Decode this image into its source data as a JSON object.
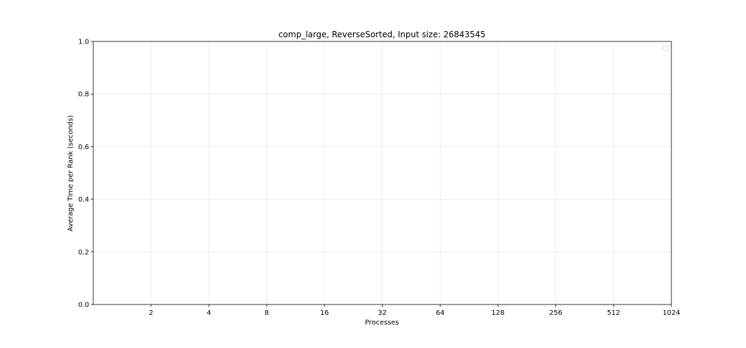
{
  "chart_data": {
    "type": "line",
    "title": "comp_large, ReverseSorted, Input size: 26843545",
    "xlabel": "Processes",
    "ylabel": "Average Time per Rank (seconds)",
    "x_scale": "log2",
    "x_ticks": [
      "2",
      "4",
      "8",
      "16",
      "32",
      "64",
      "128",
      "256",
      "512",
      "1024"
    ],
    "x_tick_values": [
      2,
      4,
      8,
      16,
      32,
      64,
      128,
      256,
      512,
      1024
    ],
    "xlim": [
      1,
      1024
    ],
    "ylim": [
      0,
      1
    ],
    "y_ticks": [
      "0.0",
      "0.2",
      "0.4",
      "0.6",
      "0.8",
      "1.0"
    ],
    "y_tick_values": [
      0,
      0.2,
      0.4,
      0.6,
      0.8,
      1.0
    ],
    "grid": true,
    "legend_position": "top-right",
    "series": []
  }
}
